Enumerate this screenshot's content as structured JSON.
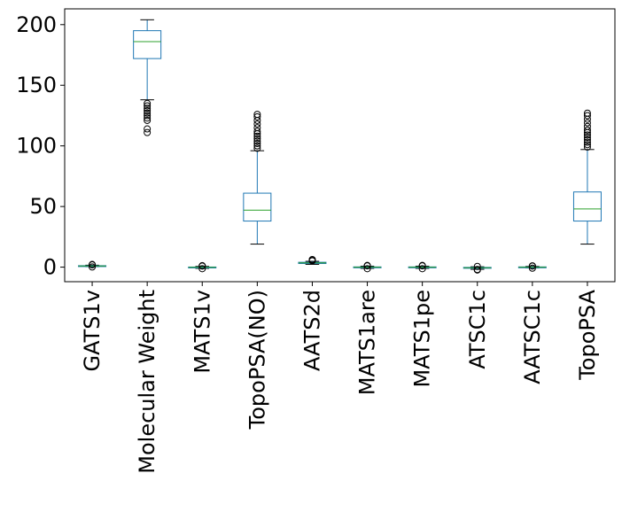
{
  "chart_data": {
    "type": "box",
    "title": "",
    "xlabel": "",
    "ylabel": "",
    "ylim": [
      -12,
      213
    ],
    "yticks": [
      0,
      50,
      100,
      150,
      200
    ],
    "grid": false,
    "colors": {
      "box": "#1f77b4",
      "median": "#2ca02c",
      "outlier": "#000000",
      "axis": "#000000"
    },
    "categories": [
      "GATS1v",
      "Molecular Weight",
      "MATS1v",
      "TopoPSA(NO)",
      "AATS2d",
      "MATS1are",
      "MATS1pe",
      "ATSC1c",
      "AATSC1c",
      "TopoPSA"
    ],
    "series": [
      {
        "label": "GATS1v",
        "whislo": 0.4,
        "q1": 0.8,
        "med": 1.0,
        "q3": 1.2,
        "whishi": 1.6,
        "fliers": [
          1.9,
          2.2,
          0.1
        ]
      },
      {
        "label": "Molecular Weight",
        "whislo": 138,
        "q1": 172,
        "med": 186,
        "q3": 195,
        "whishi": 204,
        "fliers": [
          135,
          133,
          131,
          129,
          127,
          125,
          123,
          121,
          114,
          111
        ]
      },
      {
        "label": "MATS1v",
        "whislo": -1.0,
        "q1": -0.3,
        "med": -0.1,
        "q3": 0.1,
        "whishi": 0.6,
        "fliers": [
          0.9,
          1.2,
          -1.3
        ]
      },
      {
        "label": "TopoPSA(NO)",
        "whislo": 19,
        "q1": 38,
        "med": 47,
        "q3": 61,
        "whishi": 96,
        "fliers": [
          98,
          100,
          102,
          104,
          106,
          108,
          110,
          112,
          115,
          118,
          121,
          124,
          126
        ]
      },
      {
        "label": "AATS2d",
        "whislo": 2.3,
        "q1": 3.0,
        "med": 3.5,
        "q3": 4.0,
        "whishi": 4.8,
        "fliers": [
          5.2,
          5.8,
          6.3
        ]
      },
      {
        "label": "MATS1are",
        "whislo": -1.0,
        "q1": -0.3,
        "med": -0.05,
        "q3": 0.2,
        "whishi": 0.8,
        "fliers": [
          1.1,
          1.4,
          -1.3
        ]
      },
      {
        "label": "MATS1pe",
        "whislo": -1.0,
        "q1": -0.3,
        "med": -0.05,
        "q3": 0.2,
        "whishi": 0.8,
        "fliers": [
          1.1,
          1.4,
          -1.3
        ]
      },
      {
        "label": "ATSC1c",
        "whislo": -1.8,
        "q1": -0.8,
        "med": -0.5,
        "q3": -0.2,
        "whishi": 0.3,
        "fliers": [
          -2.0,
          -2.4,
          0.6
        ]
      },
      {
        "label": "AATSC1c",
        "whislo": -0.6,
        "q1": -0.2,
        "med": 0.0,
        "q3": 0.2,
        "whishi": 0.6,
        "fliers": [
          0.9,
          1.1,
          -0.9
        ]
      },
      {
        "label": "TopoPSA",
        "whislo": 19,
        "q1": 38,
        "med": 48,
        "q3": 62,
        "whishi": 97,
        "fliers": [
          99,
          101,
          103,
          105,
          107,
          109,
          111,
          113,
          116,
          119,
          122,
          125,
          127
        ]
      }
    ]
  }
}
